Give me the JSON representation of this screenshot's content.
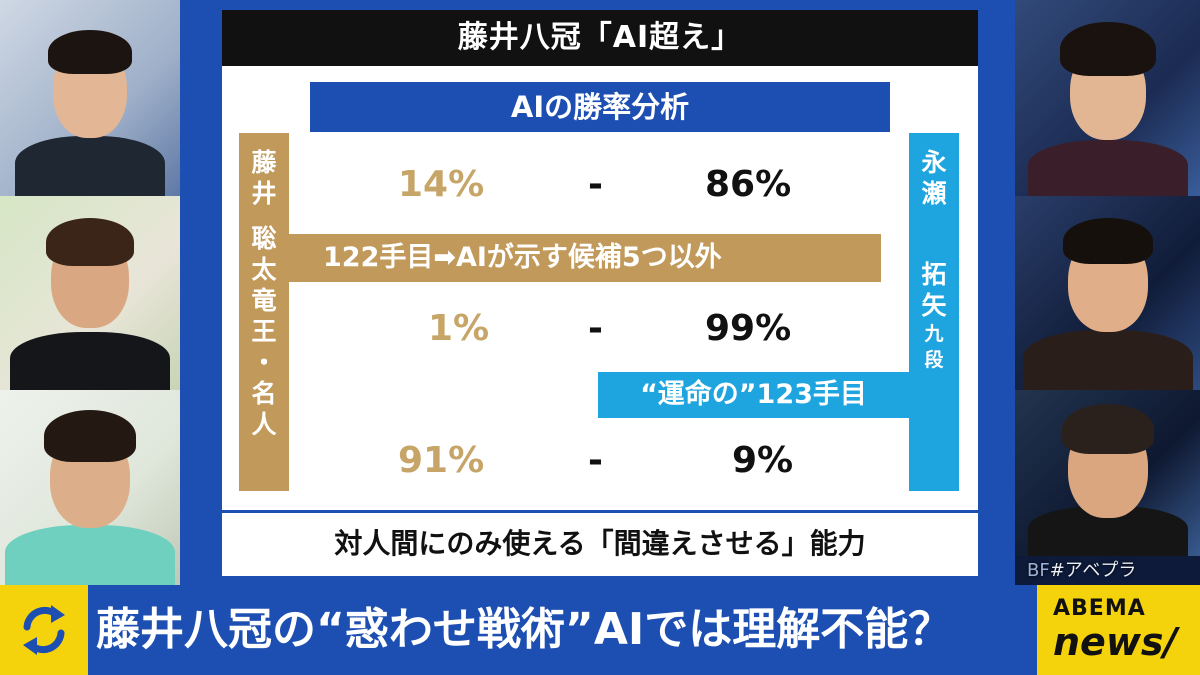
{
  "board": {
    "title": "藤井八冠「AI超え」",
    "analysis_header": "AIの勝率分析",
    "left_player": {
      "surname": [
        "藤",
        "井"
      ],
      "given": [
        "聡",
        "太"
      ],
      "titles": [
        "竜",
        "王",
        "・",
        "名",
        "人"
      ]
    },
    "right_player": {
      "surname": [
        "永",
        "瀬"
      ],
      "given": [
        "拓",
        "矢"
      ],
      "rank": [
        "九",
        "段"
      ]
    },
    "rows": [
      {
        "left": "14%",
        "dash": "-",
        "right": "86%"
      },
      {
        "left": "1%",
        "dash": "-",
        "right": "99%"
      },
      {
        "left": "91%",
        "dash": "-",
        "right": "9%"
      }
    ],
    "gold_banner": "122手目➡AIが示す候補5つ以外",
    "blue_banner": "“運命の”123手目",
    "bottom_line": "対人間にのみ使える「間違えさせる」能力"
  },
  "hashtag": {
    "prefix": "BF",
    "tag": "#アベプラ"
  },
  "ticker": {
    "headline": "藤井八冠の“惑わせ戦術”AIでは理解不能？",
    "icon": "refresh-arrows-icon"
  },
  "logo": {
    "line1": "ABEMA",
    "line2": "news/"
  },
  "colors": {
    "board_blue": "#1d4fb2",
    "gold": "#c19a5b",
    "sky": "#1ea4df",
    "yellow": "#f4d20c"
  }
}
